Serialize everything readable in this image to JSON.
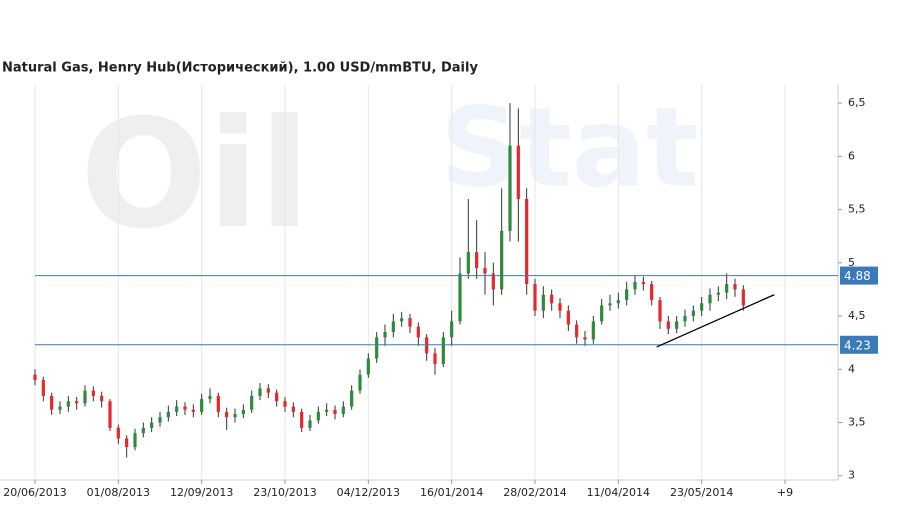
{
  "chart_data": {
    "type": "candlestick",
    "title": "Natural Gas, Henry Hub(Исторический), 1.00 USD/mmBTU, Daily",
    "watermark": [
      "Oil",
      "Stat"
    ],
    "categories": [
      "20/06/2013",
      null,
      null,
      null,
      null,
      null,
      null,
      null,
      null,
      null,
      "01/08/2013",
      null,
      null,
      null,
      null,
      null,
      null,
      null,
      null,
      null,
      "12/09/2013",
      null,
      null,
      null,
      null,
      null,
      null,
      null,
      null,
      null,
      "23/10/2013",
      null,
      null,
      null,
      null,
      null,
      null,
      null,
      null,
      null,
      "04/12/2013",
      null,
      null,
      null,
      null,
      null,
      null,
      null,
      null,
      null,
      "16/01/2014",
      null,
      null,
      null,
      null,
      null,
      null,
      null,
      null,
      null,
      "28/02/2014",
      null,
      null,
      null,
      null,
      null,
      null,
      null,
      null,
      null,
      "11/04/2014",
      null,
      null,
      null,
      null,
      null,
      null,
      null,
      null,
      null,
      "23/05/2014",
      null,
      null,
      null,
      null,
      null,
      null,
      null,
      null,
      null,
      "+9"
    ],
    "open": [
      3.95,
      3.9,
      3.75,
      3.62,
      3.65,
      3.7,
      3.68,
      3.8,
      3.75,
      3.7,
      3.45,
      3.35,
      3.27,
      3.4,
      3.45,
      3.5,
      3.55,
      3.6,
      3.65,
      3.62,
      3.6,
      3.72,
      3.75,
      3.6,
      3.55,
      3.58,
      3.62,
      3.75,
      3.82,
      3.78,
      3.7,
      3.65,
      3.6,
      3.45,
      3.52,
      3.6,
      3.62,
      3.58,
      3.65,
      3.8,
      3.95,
      4.1,
      4.3,
      4.35,
      4.45,
      4.48,
      4.4,
      4.3,
      4.15,
      4.05,
      4.3,
      4.45,
      4.9,
      5.1,
      4.95,
      4.9,
      4.75,
      5.3,
      6.1,
      5.6,
      4.8,
      4.55,
      4.7,
      4.62,
      4.55,
      4.42,
      4.3,
      4.28,
      4.45,
      4.6,
      4.62,
      4.65,
      4.75,
      4.82,
      4.8,
      4.65,
      4.45,
      4.38,
      4.45,
      4.5,
      4.55,
      4.62,
      4.7,
      4.72,
      4.8,
      4.75,
      null,
      null,
      null,
      null,
      null
    ],
    "high": [
      4.0,
      3.93,
      3.78,
      3.7,
      3.75,
      3.74,
      3.85,
      3.84,
      3.79,
      3.72,
      3.48,
      3.38,
      3.44,
      3.5,
      3.55,
      3.6,
      3.66,
      3.71,
      3.69,
      3.67,
      3.77,
      3.82,
      3.78,
      3.64,
      3.63,
      3.67,
      3.8,
      3.87,
      3.86,
      3.81,
      3.74,
      3.69,
      3.63,
      3.57,
      3.65,
      3.68,
      3.66,
      3.7,
      3.85,
      4.0,
      4.15,
      4.35,
      4.42,
      4.52,
      4.54,
      4.52,
      4.44,
      4.33,
      4.2,
      4.35,
      4.55,
      5.05,
      5.6,
      5.4,
      5.1,
      5.0,
      5.7,
      6.5,
      6.45,
      5.7,
      4.85,
      4.78,
      4.75,
      4.67,
      4.6,
      4.46,
      4.36,
      4.5,
      4.66,
      4.7,
      4.72,
      4.82,
      4.88,
      4.87,
      4.83,
      4.68,
      4.5,
      4.5,
      4.56,
      4.6,
      4.68,
      4.76,
      4.78,
      4.9,
      4.85,
      4.79,
      null,
      null,
      null,
      null,
      null
    ],
    "low": [
      3.85,
      3.7,
      3.57,
      3.58,
      3.6,
      3.62,
      3.65,
      3.7,
      3.64,
      3.42,
      3.3,
      3.17,
      3.24,
      3.36,
      3.41,
      3.46,
      3.51,
      3.56,
      3.57,
      3.55,
      3.57,
      3.68,
      3.55,
      3.43,
      3.5,
      3.54,
      3.59,
      3.71,
      3.73,
      3.65,
      3.6,
      3.55,
      3.41,
      3.42,
      3.49,
      3.56,
      3.53,
      3.55,
      3.62,
      3.77,
      3.92,
      4.06,
      4.22,
      4.3,
      4.4,
      4.34,
      4.22,
      4.08,
      3.95,
      4.02,
      4.22,
      4.42,
      4.85,
      4.85,
      4.7,
      4.6,
      4.7,
      5.2,
      5.2,
      4.7,
      4.5,
      4.48,
      4.55,
      4.48,
      4.36,
      4.24,
      4.22,
      4.24,
      4.42,
      4.55,
      4.57,
      4.6,
      4.7,
      4.74,
      4.6,
      4.38,
      4.33,
      4.34,
      4.4,
      4.45,
      4.5,
      4.55,
      4.64,
      4.66,
      4.68,
      4.55,
      null,
      null,
      null,
      null,
      null
    ],
    "close": [
      3.9,
      3.75,
      3.62,
      3.65,
      3.7,
      3.68,
      3.8,
      3.75,
      3.7,
      3.45,
      3.35,
      3.27,
      3.4,
      3.45,
      3.5,
      3.55,
      3.6,
      3.65,
      3.62,
      3.6,
      3.72,
      3.75,
      3.6,
      3.55,
      3.58,
      3.62,
      3.75,
      3.82,
      3.78,
      3.7,
      3.65,
      3.6,
      3.45,
      3.52,
      3.6,
      3.62,
      3.58,
      3.65,
      3.8,
      3.95,
      4.1,
      4.3,
      4.35,
      4.45,
      4.48,
      4.4,
      4.3,
      4.15,
      4.05,
      4.3,
      4.45,
      4.9,
      5.1,
      4.95,
      4.9,
      4.75,
      5.3,
      6.1,
      5.6,
      4.8,
      4.55,
      4.7,
      4.62,
      4.55,
      4.42,
      4.3,
      4.28,
      4.45,
      4.6,
      4.62,
      4.65,
      4.75,
      4.82,
      4.8,
      4.65,
      4.45,
      4.38,
      4.45,
      4.5,
      4.55,
      4.62,
      4.7,
      4.72,
      4.8,
      4.75,
      4.6,
      null,
      null,
      null,
      null,
      null
    ],
    "up_color": "#2e8b3a",
    "down_color": "#e8262b",
    "wick_color": "#333333",
    "ylim": [
      2.96,
      6.67
    ],
    "yticks": [
      {
        "value": 3,
        "label": "3"
      },
      {
        "value": 3.5,
        "label": "3,5"
      },
      {
        "value": 4,
        "label": "4"
      },
      {
        "value": 4.5,
        "label": "4,5"
      },
      {
        "value": 5,
        "label": "5"
      },
      {
        "value": 5.5,
        "label": "5,5"
      },
      {
        "value": 6,
        "label": "6"
      },
      {
        "value": 6.5,
        "label": "6,5"
      }
    ],
    "levels": [
      4.88,
      4.23
    ],
    "level_color": "#3a7ab8",
    "trendline": {
      "x": [
        74.6,
        88.7
      ],
      "y": [
        4.21,
        4.7
      ]
    },
    "grid": true
  }
}
